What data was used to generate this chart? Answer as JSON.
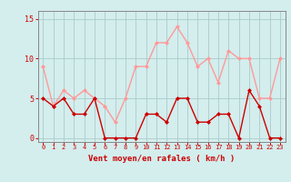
{
  "x": [
    0,
    1,
    2,
    3,
    4,
    5,
    6,
    7,
    8,
    9,
    10,
    11,
    12,
    13,
    14,
    15,
    16,
    17,
    18,
    19,
    20,
    21,
    22,
    23
  ],
  "vent_moyen": [
    5,
    4,
    5,
    3,
    3,
    5,
    0,
    0,
    0,
    0,
    3,
    3,
    2,
    5,
    5,
    2,
    2,
    3,
    3,
    0,
    6,
    4,
    0,
    0
  ],
  "rafales": [
    9,
    4,
    6,
    5,
    6,
    5,
    4,
    2,
    5,
    9,
    9,
    12,
    12,
    14,
    12,
    9,
    10,
    7,
    11,
    10,
    10,
    5,
    5,
    10
  ],
  "line_color_moyen": "#cc0000",
  "line_color_rafales": "#ff9999",
  "background_color": "#d4eded",
  "grid_color": "#aacccc",
  "xlabel": "Vent moyen/en rafales ( km/h )",
  "yticks": [
    0,
    5,
    10,
    15
  ],
  "xticks": [
    0,
    1,
    2,
    3,
    4,
    5,
    6,
    7,
    8,
    9,
    10,
    11,
    12,
    13,
    14,
    15,
    16,
    17,
    18,
    19,
    20,
    21,
    22,
    23
  ],
  "ylim": [
    -0.5,
    16
  ],
  "xlim": [
    -0.5,
    23.5
  ],
  "markersize": 2.0,
  "linewidth": 1.0,
  "xlabel_color": "#cc0000",
  "tick_color": "#cc0000",
  "axis_color": "#888888"
}
